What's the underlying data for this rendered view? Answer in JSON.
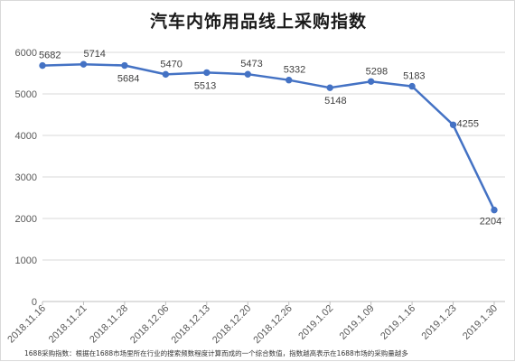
{
  "title": "汽车内饰用品线上采购指数",
  "footnote": "1688采购指数：根据在1688市场里所在行业的搜索频数程度计算而成的一个综合数值，指数越高表示在1688市场的采购量越多",
  "colors": {
    "line": "#4472c4",
    "grid": "#d9d9d9",
    "axis": "#bfbfbf"
  },
  "chart_data": {
    "type": "line",
    "title": "汽车内饰用品线上采购指数",
    "xlabel": "",
    "ylabel": "",
    "ylim": [
      0,
      6000
    ],
    "yticks": [
      0,
      1000,
      2000,
      3000,
      4000,
      5000,
      6000
    ],
    "grid": true,
    "legend": "none",
    "categories": [
      "2018.11.16",
      "2018.11.21",
      "2018.11.28",
      "2018.12.06",
      "2018.12.13",
      "2018.12.20",
      "2018.12.26",
      "2019.1.02",
      "2019.1.09",
      "2019.1.16",
      "2019.1.23",
      "2019.1.30"
    ],
    "series": [
      {
        "values": [
          5682,
          5714,
          5684,
          5470,
          5513,
          5473,
          5332,
          5148,
          5298,
          5183,
          4255,
          2204
        ],
        "data_labels": [
          "5682",
          "5714",
          "5684",
          "5470",
          "5513",
          "5473",
          "5332",
          "5148",
          "5298",
          "5183",
          "4255",
          "2204"
        ]
      }
    ]
  }
}
